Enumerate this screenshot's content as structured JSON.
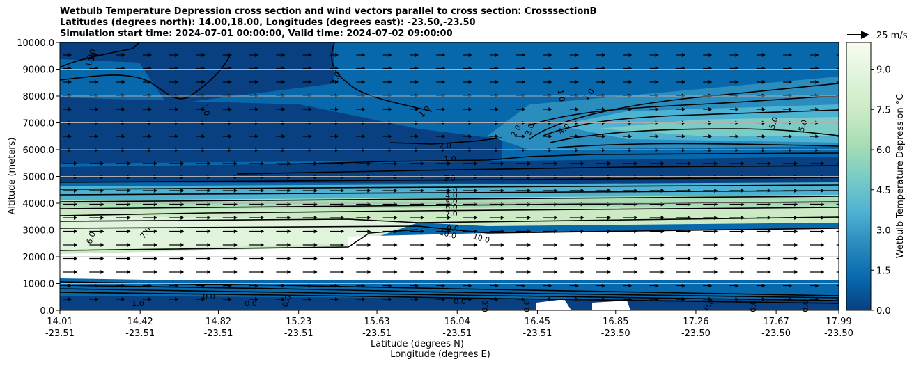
{
  "title_lines": [
    "Wetbulb Temperature Depression cross section and wind vectors parallel to cross section: CrosssectionB",
    "Latitudes (degrees north): 14.00,18.00, Longitudes (degrees east): -23.50,-23.50",
    "Simulation start time: 2024-07-01 00:00:00, Valid time: 2024-07-02 09:00:00"
  ],
  "chart_data": {
    "type": "heatmap",
    "ylabel": "Altitude (meters)",
    "xlabel_line1": "Latitude (degrees N)",
    "xlabel_line2": "Longitude (degrees E)",
    "ylim": [
      0,
      10000
    ],
    "y_ticks": [
      "0.0",
      "1000.0",
      "2000.0",
      "3000.0",
      "4000.0",
      "5000.0",
      "6000.0",
      "7000.0",
      "8000.0",
      "9000.0",
      "10000.0"
    ],
    "y_tick_values": [
      0,
      1000,
      2000,
      3000,
      4000,
      5000,
      6000,
      7000,
      8000,
      9000,
      10000
    ],
    "x_ticks": [
      {
        "lat": "14.01",
        "lon": "-23.51"
      },
      {
        "lat": "14.42",
        "lon": "-23.51"
      },
      {
        "lat": "14.82",
        "lon": "-23.51"
      },
      {
        "lat": "15.23",
        "lon": "-23.51"
      },
      {
        "lat": "15.63",
        "lon": "-23.51"
      },
      {
        "lat": "16.04",
        "lon": "-23.51"
      },
      {
        "lat": "16.45",
        "lon": "-23.51"
      },
      {
        "lat": "16.85",
        "lon": "-23.50"
      },
      {
        "lat": "17.26",
        "lon": "-23.50"
      },
      {
        "lat": "17.67",
        "lon": "-23.50"
      },
      {
        "lat": "17.99",
        "lon": "-23.50"
      }
    ],
    "x_range": [
      14.01,
      17.99
    ],
    "colorbar_label": "Wetbulb Temperature Depression °C",
    "colorbar_range": [
      0,
      10
    ],
    "colorbar_ticks": [
      "0.0",
      "1.5",
      "3.0",
      "4.5",
      "6.0",
      "7.5",
      "9.0"
    ],
    "colorbar_tick_values": [
      0,
      1.5,
      3.0,
      4.5,
      6.0,
      7.5,
      9.0
    ],
    "quiver_key": "25 m/s",
    "contour_labels": [
      "1.0",
      "1.0",
      "1.0",
      "1.0",
      "1.0",
      "1.0",
      "2.0",
      "3.0",
      "4.0",
      "5.0",
      "2.0",
      "1.0",
      "1.0",
      "3.0",
      "4.0",
      "5.0",
      "6.0",
      "7.0",
      "9.0",
      "10.0",
      "10.0",
      "6.0",
      "7.0",
      "5.0",
      "1.0",
      "1.0",
      "0.0",
      "0.0",
      "0.0",
      "0.0",
      "0.0",
      "0.0",
      "0.0",
      "0.0",
      "0.0"
    ],
    "grid": true,
    "colors": [
      "#084081",
      "#0868ac",
      "#2b8cbe",
      "#4eb3d3",
      "#7bccc4",
      "#a8ddb5",
      "#ccebc5",
      "#e0f3db",
      "#f7fcf0"
    ]
  }
}
